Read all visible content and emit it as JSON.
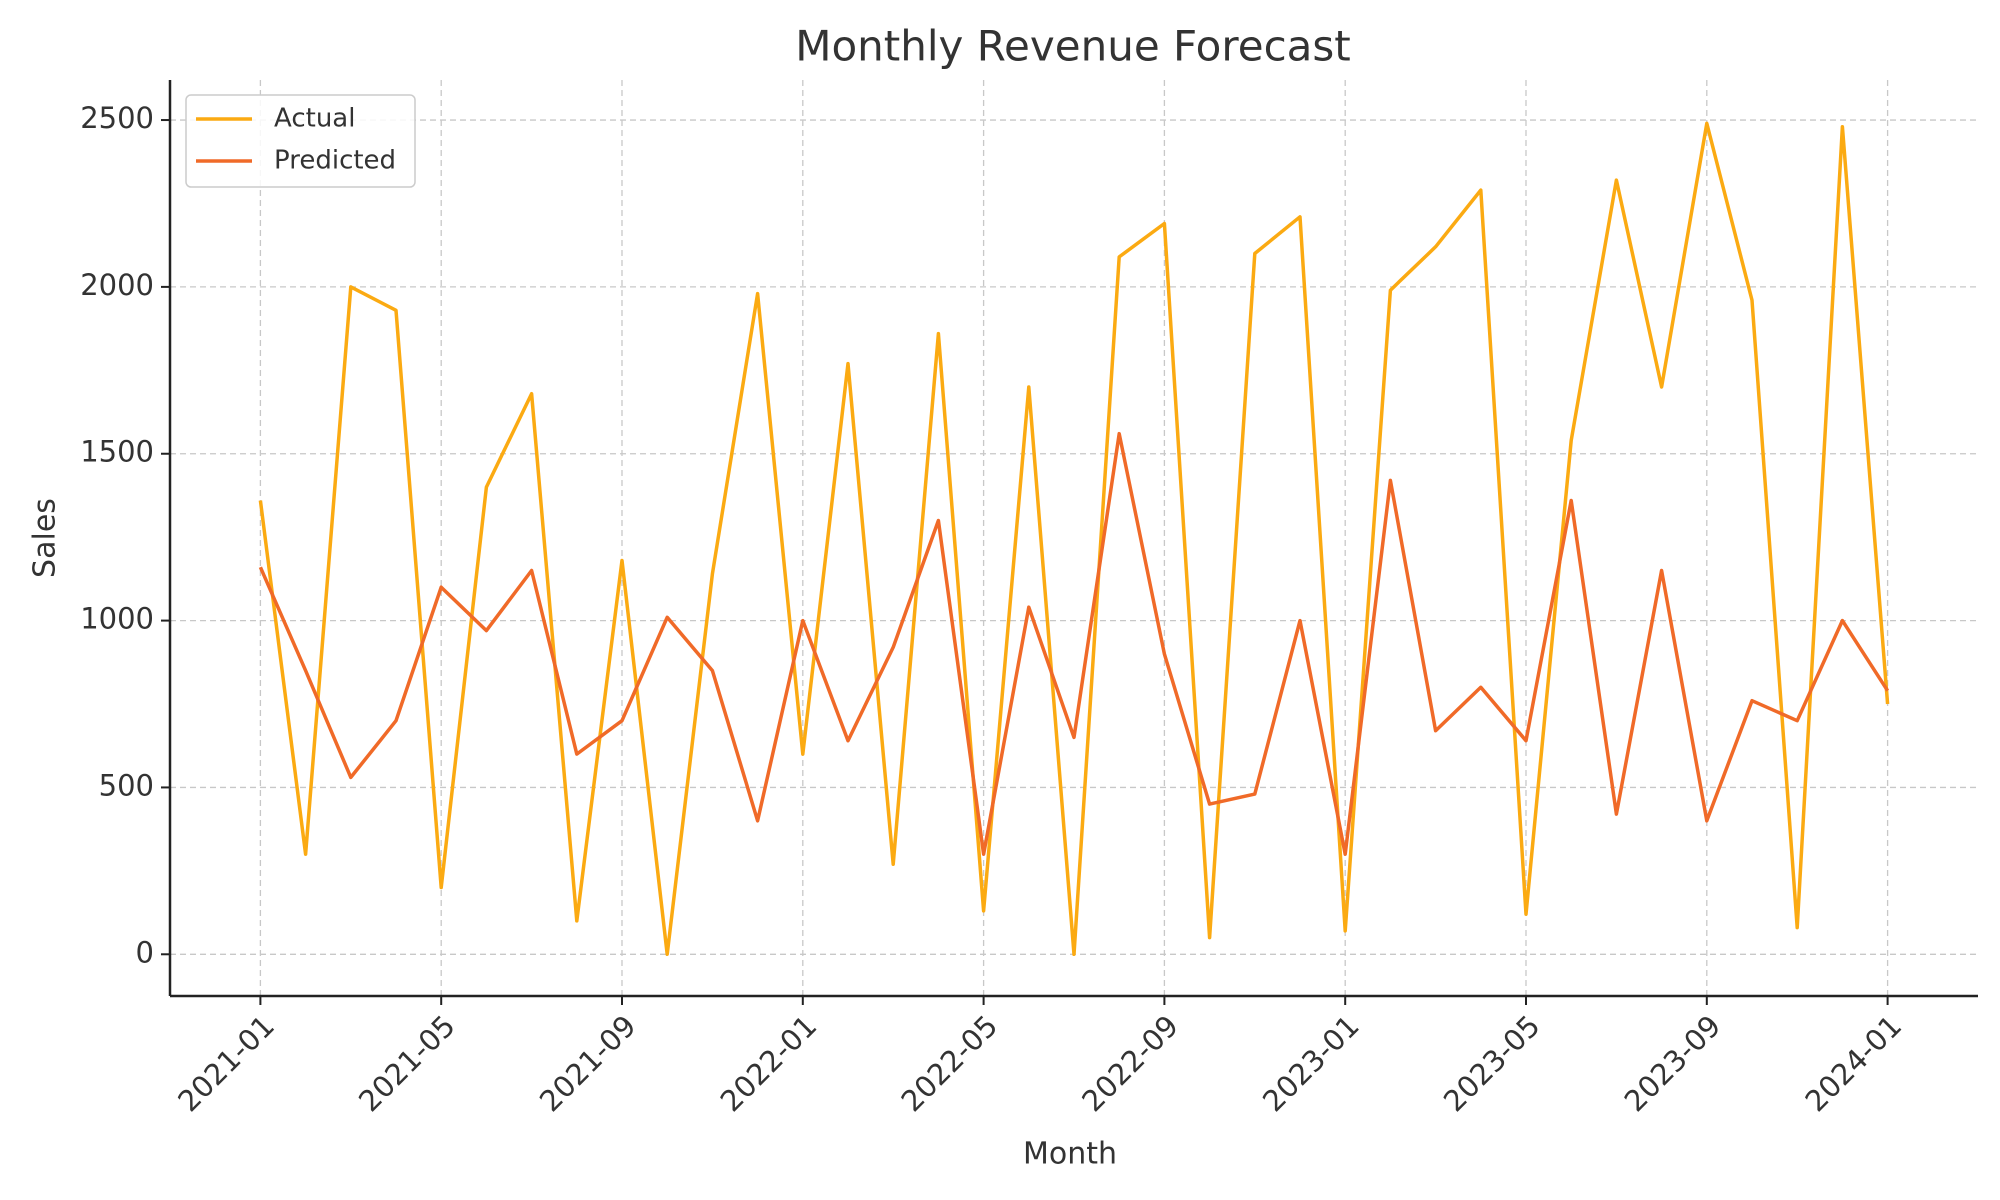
{
  "chart_data": {
    "type": "line",
    "title": "Monthly Revenue Forecast",
    "x_label": "Month",
    "y_label": "Sales",
    "x": [
      "2021-01",
      "2021-02",
      "2021-03",
      "2021-04",
      "2021-05",
      "2021-06",
      "2021-07",
      "2021-08",
      "2021-09",
      "2021-10",
      "2021-11",
      "2021-12",
      "2022-01",
      "2022-02",
      "2022-03",
      "2022-04",
      "2022-05",
      "2022-06",
      "2022-07",
      "2022-08",
      "2022-09",
      "2022-10",
      "2022-11",
      "2022-12",
      "2023-01",
      "2023-02",
      "2023-03",
      "2023-04",
      "2023-05",
      "2023-06",
      "2023-07",
      "2023-08",
      "2023-09",
      "2023-10",
      "2023-11",
      "2023-12",
      "2024-01"
    ],
    "series": [
      {
        "name": "Actual",
        "color": "#fbaa12",
        "values": [
          1360,
          300,
          2000,
          1930,
          200,
          1400,
          1680,
          100,
          1180,
          0,
          1140,
          1980,
          600,
          1770,
          270,
          1860,
          130,
          1700,
          0,
          2090,
          2190,
          50,
          2100,
          2210,
          70,
          1990,
          2120,
          2290,
          120,
          1540,
          2320,
          1700,
          2490,
          1960,
          80,
          2480,
          750
        ]
      },
      {
        "name": "Predicted",
        "color": "#f06a28",
        "values": [
          1160,
          850,
          530,
          700,
          1100,
          970,
          1150,
          600,
          700,
          1010,
          850,
          400,
          1000,
          640,
          920,
          1300,
          300,
          1040,
          650,
          1560,
          900,
          450,
          480,
          1000,
          300,
          1420,
          670,
          800,
          640,
          1360,
          420,
          1150,
          400,
          760,
          700,
          1000,
          790
        ]
      }
    ],
    "xlim": [
      "2020-11",
      "2024-03"
    ],
    "xticks": [
      "2021-01",
      "2021-05",
      "2021-09",
      "2022-01",
      "2022-05",
      "2022-09",
      "2023-01",
      "2023-05",
      "2023-09",
      "2024-01"
    ],
    "ylim": [
      -125,
      2620
    ],
    "yticks": [
      0,
      500,
      1000,
      1500,
      2000,
      2500
    ],
    "grid": true,
    "legend": "upper left"
  }
}
